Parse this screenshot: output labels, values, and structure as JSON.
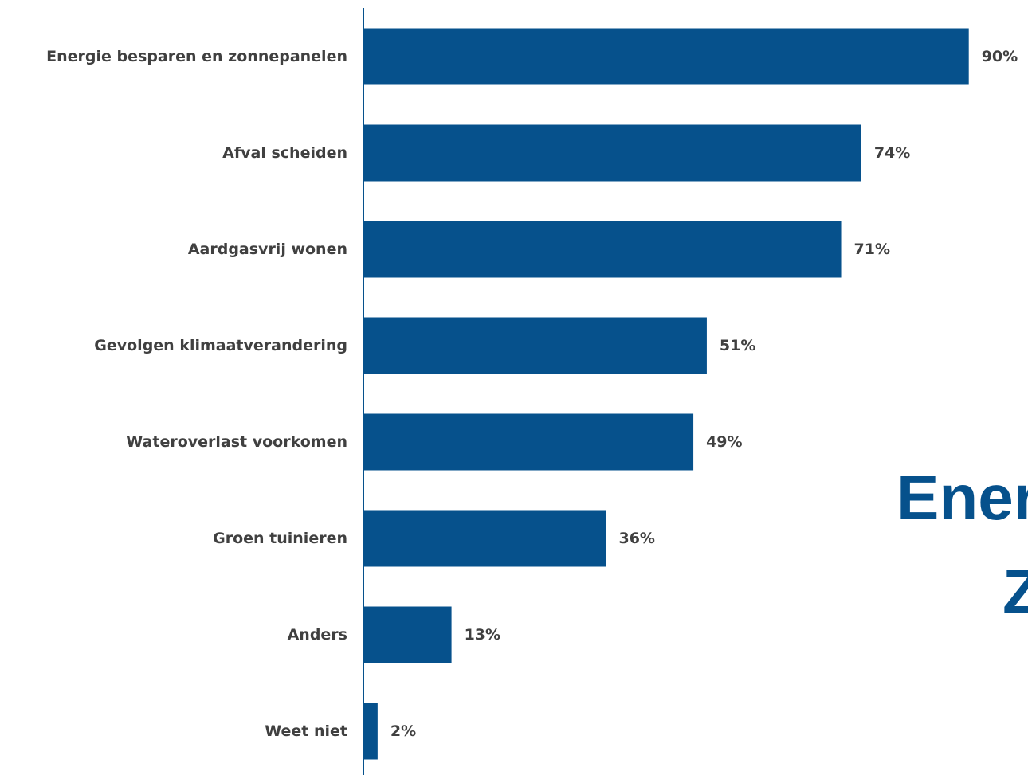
{
  "chart_data": {
    "type": "bar",
    "orientation": "horizontal",
    "categories": [
      "Energie besparen en zonnepanelen",
      "Afval scheiden",
      "Aardgasvrij wonen",
      "Gevolgen klimaatverandering",
      "Wateroverlast voorkomen",
      "Groen tuinieren",
      "Anders",
      "Weet niet"
    ],
    "values": [
      90,
      74,
      71,
      51,
      49,
      36,
      13,
      2
    ],
    "value_labels": [
      "90%",
      "74%",
      "71%",
      "51%",
      "49%",
      "36%",
      "13%",
      "2%"
    ],
    "unit": "%",
    "xlim": [
      0,
      100
    ],
    "grid": false,
    "legend": "none",
    "bar_color": "#06518c",
    "label_color": "#404040"
  },
  "overlay_text": {
    "line1": "Ener",
    "line2": "Z",
    "color": "#06518c"
  }
}
